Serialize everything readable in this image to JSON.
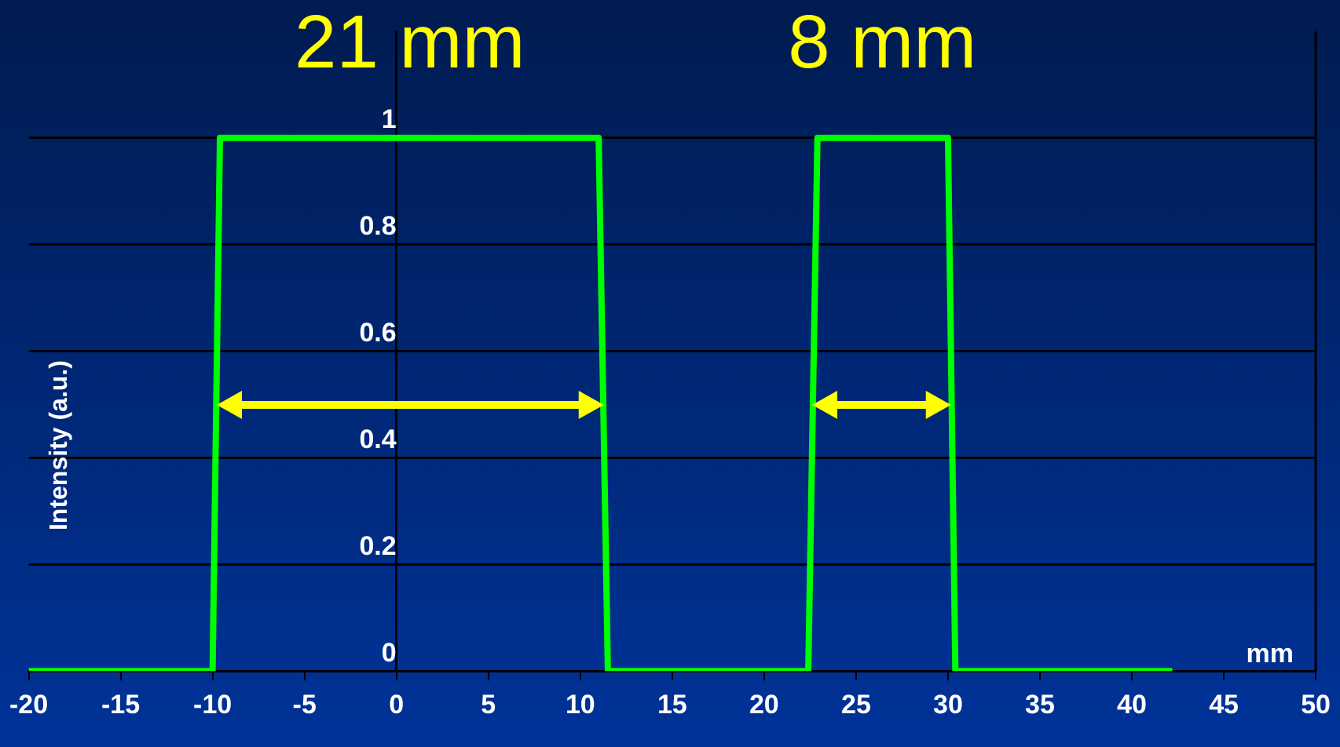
{
  "chart_data": {
    "type": "line",
    "xlabel": "mm",
    "ylabel": "Intensity (a.u.)",
    "annotations": [
      "21 mm",
      "8 mm"
    ],
    "x": [
      -20,
      -10,
      -9.6,
      11,
      11.5,
      22.4,
      22.9,
      30,
      30.4,
      42.2
    ],
    "values": [
      0,
      0,
      1,
      1,
      0,
      0,
      1,
      1,
      0,
      0
    ],
    "color": "#00ff00",
    "marker": "none",
    "line_style": "solid",
    "legend": false,
    "grid": "y",
    "xlim": [
      -20,
      50
    ],
    "xticks": [
      -20,
      -15,
      -10,
      -5,
      0,
      5,
      10,
      15,
      20,
      25,
      30,
      35,
      40,
      45,
      50
    ],
    "ylim": [
      0,
      1.2
    ],
    "yticks": [
      0,
      0.2,
      0.4,
      0.6,
      0.8,
      1
    ]
  }
}
